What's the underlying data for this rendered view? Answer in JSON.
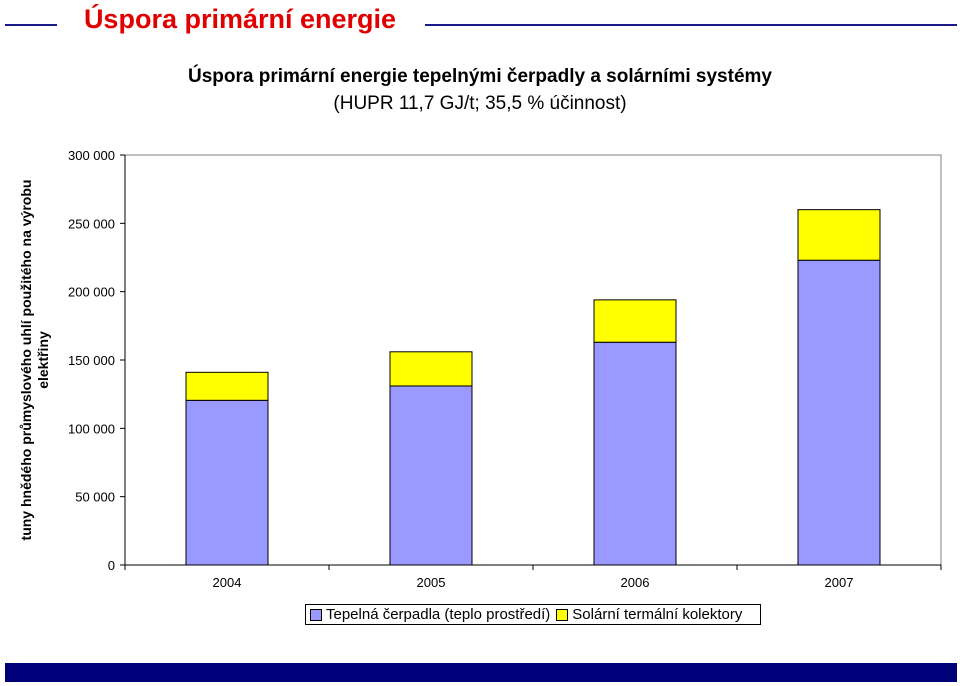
{
  "slide": {
    "title": "Úspora primární energie",
    "accent_color": "#1a1a8c",
    "title_color": "#e00000",
    "footer_color": "#00007a"
  },
  "chart_data": {
    "type": "bar",
    "stacked": true,
    "title": "Úspora primární energie tepelnými čerpadly a solárními systémy",
    "subtitle": "(HUPR 11,7 GJ/t; 35,5 % účinnost)",
    "xlabel": "",
    "ylabel": "tuny hnědého průmyslového uhlí použitého na výrobu elektřiny",
    "categories": [
      "2004",
      "2005",
      "2006",
      "2007"
    ],
    "series": [
      {
        "name": "Tepelná čerpadla (teplo prostředí)",
        "color": "#9999ff",
        "values": [
          120500,
          131000,
          163000,
          223000
        ]
      },
      {
        "name": "Solární termální kolektory",
        "color": "#ffff00",
        "values": [
          20500,
          25000,
          31000,
          37000
        ]
      }
    ],
    "ylim": [
      0,
      300000
    ],
    "yticks": [
      0,
      50000,
      100000,
      150000,
      200000,
      250000,
      300000
    ],
    "ytick_labels": [
      "0",
      "50 000",
      "100 000",
      "150 000",
      "200 000",
      "250 000",
      "300 000"
    ],
    "grid": false,
    "legend_position": "bottom"
  }
}
